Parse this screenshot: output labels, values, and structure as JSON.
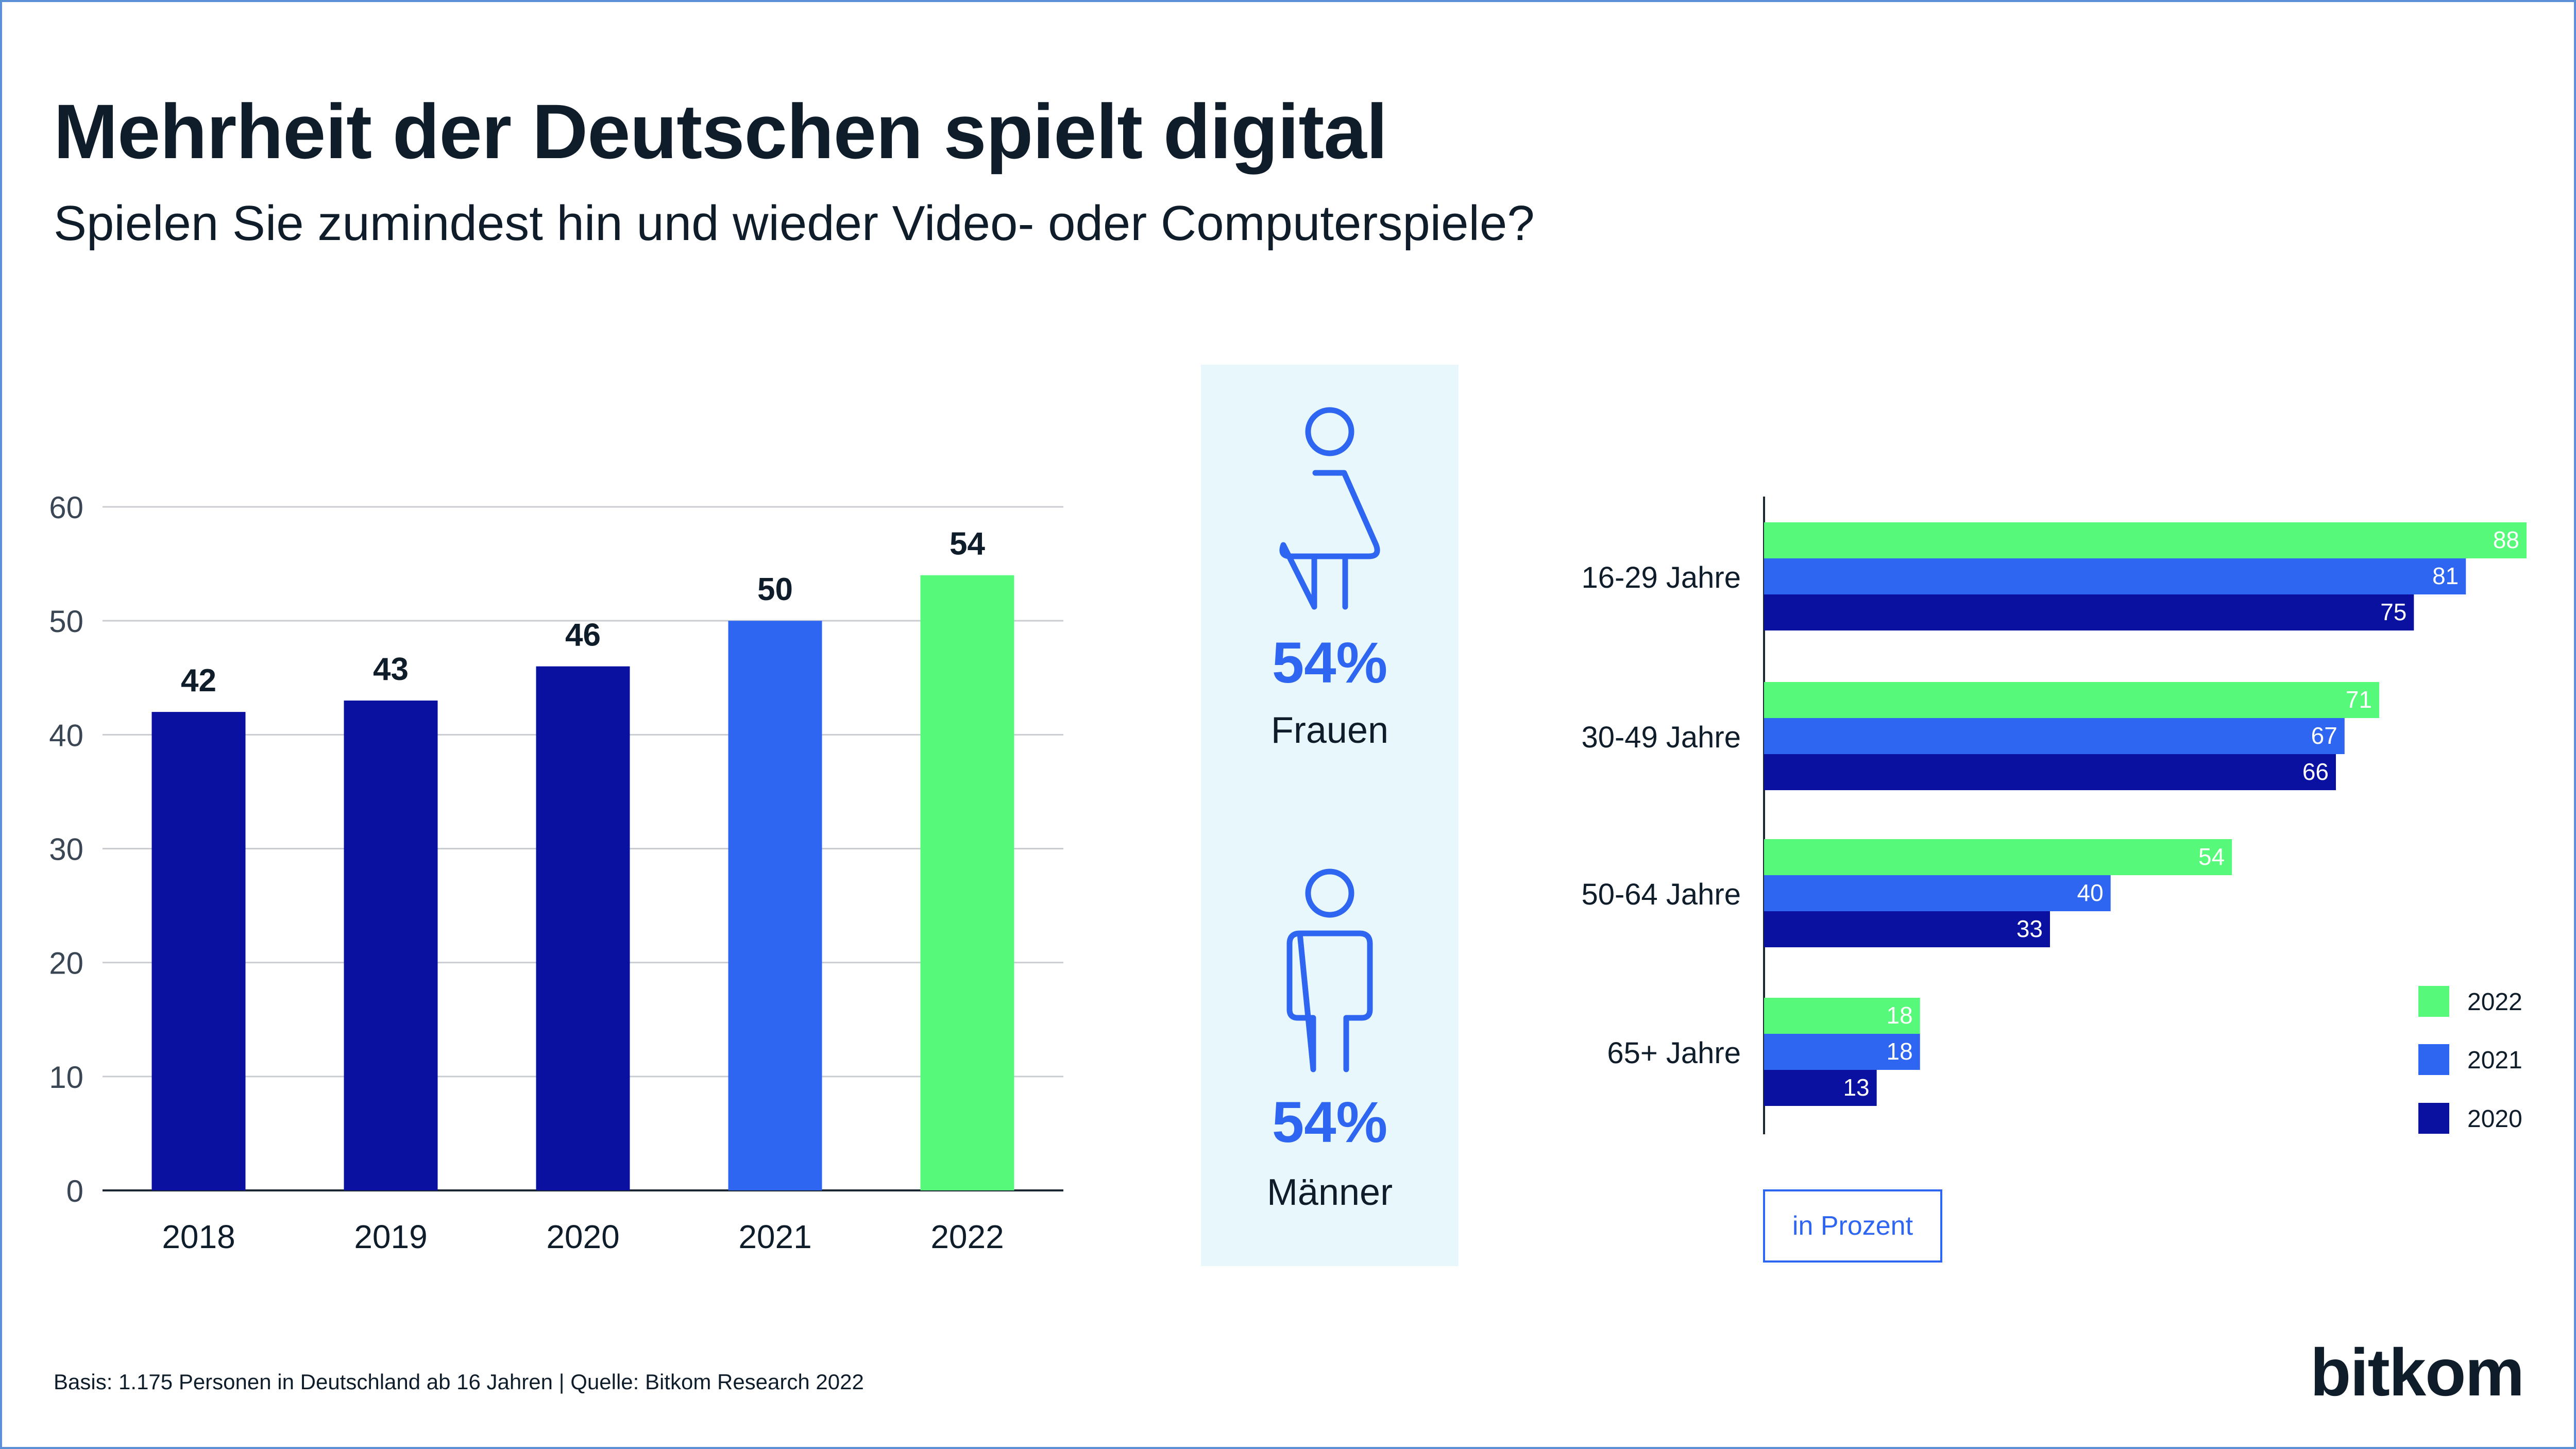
{
  "title": "Mehrheit der Deutschen spielt digital",
  "subtitle": "Spielen Sie zumindest hin und wieder Video- oder Computerspiele?",
  "colors": {
    "y2020": "#0a10a0",
    "y2021": "#2e66f1",
    "y2022": "#57f97a",
    "panel": "#e8f7fc",
    "accent": "#2e66f1",
    "text": "#0f1d2b"
  },
  "gender": {
    "women": {
      "percent": "54%",
      "label": "Frauen",
      "icon": "female-person-icon"
    },
    "men": {
      "percent": "54%",
      "label": "Männer",
      "icon": "male-person-icon"
    }
  },
  "unit_label": "in Prozent",
  "footnote": "Basis: 1.175 Personen in Deutschland ab 16 Jahren | Quelle: Bitkom Research 2022",
  "logo": "bitkom",
  "chart_data": [
    {
      "type": "bar",
      "categories": [
        "2018",
        "2019",
        "2020",
        "2021",
        "2022"
      ],
      "values": [
        42,
        43,
        46,
        50,
        54
      ],
      "value_labels": [
        "42",
        "43",
        "46",
        "50",
        "54"
      ],
      "bar_colors": [
        "#0a10a0",
        "#0a10a0",
        "#0a10a0",
        "#2e66f1",
        "#57f97a"
      ],
      "ylim": [
        0,
        60
      ],
      "yticks": [
        0,
        10,
        20,
        30,
        40,
        50,
        60
      ],
      "grid": true
    },
    {
      "type": "bar",
      "orientation": "horizontal",
      "categories": [
        "16-29 Jahre",
        "30-49 Jahre",
        "50-64 Jahre",
        "65+ Jahre"
      ],
      "series": [
        {
          "name": "2022",
          "color": "#57f97a",
          "values": [
            88,
            71,
            54,
            18
          ]
        },
        {
          "name": "2021",
          "color": "#2e66f1",
          "values": [
            81,
            67,
            40,
            18
          ]
        },
        {
          "name": "2020",
          "color": "#0a10a0",
          "values": [
            75,
            66,
            33,
            13
          ]
        }
      ],
      "xlim": [
        0,
        88
      ],
      "legend_position": "right"
    }
  ]
}
